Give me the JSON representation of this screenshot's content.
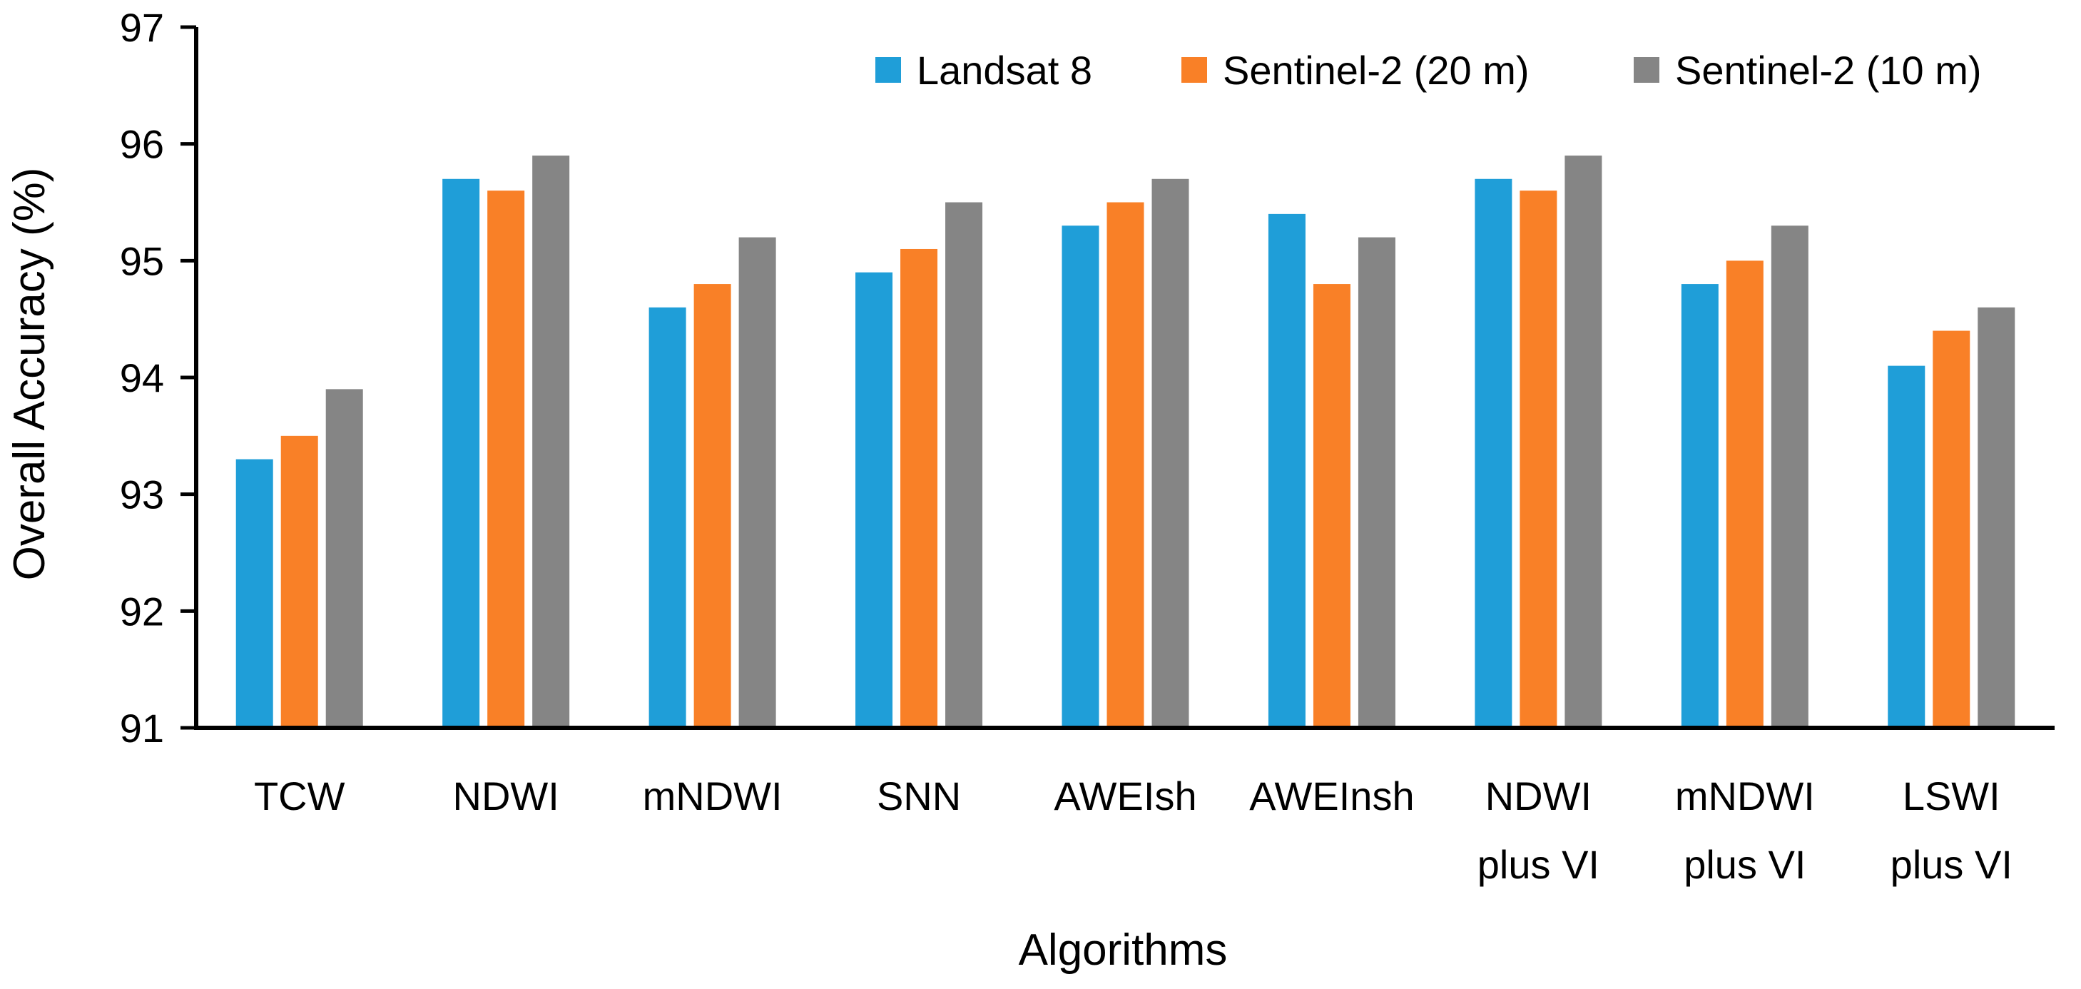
{
  "chart_data": {
    "type": "bar",
    "title": "",
    "xlabel": "Algorithms",
    "ylabel": "Overall Accuracy (%)",
    "ylim": [
      91,
      97
    ],
    "yticks": [
      91,
      92,
      93,
      94,
      95,
      96,
      97
    ],
    "grid": false,
    "legend_position": "top-right",
    "categories": [
      [
        "TCW"
      ],
      [
        "NDWI"
      ],
      [
        "mNDWI"
      ],
      [
        "SNN"
      ],
      [
        "AWEIsh"
      ],
      [
        "AWEInsh"
      ],
      [
        "NDWI",
        "plus VI"
      ],
      [
        "mNDWI",
        "plus VI"
      ],
      [
        "LSWI",
        "plus VI"
      ]
    ],
    "series": [
      {
        "name": "Landsat 8",
        "color": "#1F9ED8",
        "values": [
          93.3,
          95.7,
          94.6,
          94.9,
          95.3,
          95.4,
          95.7,
          94.8,
          94.1
        ]
      },
      {
        "name": "Sentinel-2 (20 m)",
        "color": "#F98027",
        "values": [
          93.5,
          95.6,
          94.8,
          95.1,
          95.5,
          94.8,
          95.6,
          95.0,
          94.4
        ]
      },
      {
        "name": "Sentinel-2 (10 m)",
        "color": "#858585",
        "values": [
          93.9,
          95.9,
          95.2,
          95.5,
          95.7,
          95.2,
          95.9,
          95.3,
          94.6
        ]
      }
    ]
  }
}
